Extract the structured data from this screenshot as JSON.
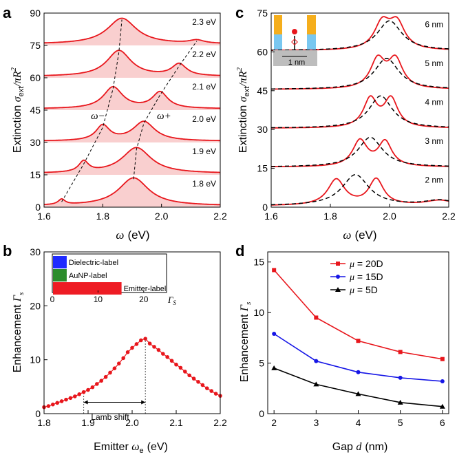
{
  "chart_data": [
    {
      "panel": "a",
      "type": "area",
      "xlabel_symbol": "ω",
      "xlabel_unit": "(eV)",
      "ylabel_prefix": "Extinction ",
      "ylabel_sigma": "σ",
      "ylabel_sub": "ext",
      "ylabel_rest": "/πR",
      "ylabel_sup": "2",
      "xlim": [
        1.6,
        2.2
      ],
      "ylim": [
        0,
        90
      ],
      "xticks": [
        "1.6",
        "1.8",
        "2.0",
        "2.2"
      ],
      "yticks": [
        "0",
        "15",
        "30",
        "45",
        "60",
        "75",
        "90"
      ],
      "annotations": [
        "ω−",
        "ω+"
      ],
      "series": [
        {
          "name": "1.8 eV",
          "offset": 0,
          "peaks": [
            {
              "x": 1.66,
              "h": 2.5,
              "w": 0.014
            },
            {
              "x": 1.905,
              "h": 13.0,
              "w": 0.062
            }
          ]
        },
        {
          "name": "1.9 eV",
          "offset": 15,
          "peaks": [
            {
              "x": 1.735,
              "h": 5.0,
              "w": 0.02
            },
            {
              "x": 1.915,
              "h": 12.0,
              "w": 0.06
            }
          ]
        },
        {
          "name": "2.0 eV",
          "offset": 30,
          "peaks": [
            {
              "x": 1.8,
              "h": 7.0,
              "w": 0.028
            },
            {
              "x": 1.94,
              "h": 9.0,
              "w": 0.045
            }
          ]
        },
        {
          "name": "2.1 eV",
          "offset": 45,
          "peaks": [
            {
              "x": 1.835,
              "h": 10.0,
              "w": 0.04
            },
            {
              "x": 1.995,
              "h": 7.5,
              "w": 0.032
            }
          ]
        },
        {
          "name": "2.2 eV",
          "offset": 60,
          "peaks": [
            {
              "x": 1.855,
              "h": 12.0,
              "w": 0.05
            },
            {
              "x": 2.06,
              "h": 5.5,
              "w": 0.03
            }
          ]
        },
        {
          "name": "2.3 eV",
          "offset": 75,
          "peaks": [
            {
              "x": 1.865,
              "h": 12.0,
              "w": 0.06
            },
            {
              "x": 2.12,
              "h": 1.5,
              "w": 0.03
            }
          ]
        }
      ],
      "dashed_lower": [
        [
          1.66,
          2.5
        ],
        [
          1.735,
          20
        ],
        [
          1.8,
          37
        ],
        [
          1.835,
          55
        ],
        [
          1.855,
          72
        ],
        [
          1.865,
          87
        ]
      ],
      "dashed_upper": [
        [
          1.905,
          13
        ],
        [
          1.915,
          27
        ],
        [
          1.94,
          39
        ],
        [
          1.995,
          52
        ],
        [
          2.06,
          65.5
        ],
        [
          2.12,
          77
        ]
      ]
    },
    {
      "panel": "b",
      "type": "line",
      "xlabel_prefix": "Emitter ",
      "xlabel_symbol": "ω",
      "xlabel_sub": "e",
      "xlabel_unit": "(eV)",
      "ylabel_prefix": "Enhancement ",
      "ylabel_symbol": "Γ",
      "ylabel_sub": "s",
      "xlim": [
        1.8,
        2.2
      ],
      "ylim": [
        0,
        30
      ],
      "xticks": [
        "1.8",
        "1.9",
        "2.0",
        "2.1",
        "2.2"
      ],
      "yticks": [
        "0",
        "10",
        "20",
        "30"
      ],
      "x": [
        1.8,
        1.81,
        1.82,
        1.83,
        1.84,
        1.85,
        1.86,
        1.87,
        1.88,
        1.89,
        1.9,
        1.91,
        1.92,
        1.93,
        1.94,
        1.95,
        1.96,
        1.97,
        1.98,
        1.99,
        2.0,
        2.01,
        2.02,
        2.03,
        2.04,
        2.05,
        2.06,
        2.07,
        2.08,
        2.09,
        2.1,
        2.11,
        2.12,
        2.13,
        2.14,
        2.15,
        2.16,
        2.17,
        2.18,
        2.19,
        2.2
      ],
      "y": [
        1.2,
        1.4,
        1.7,
        2.0,
        2.3,
        2.6,
        2.9,
        3.2,
        3.6,
        4.0,
        4.4,
        4.9,
        5.5,
        6.1,
        6.8,
        7.6,
        8.4,
        9.3,
        10.3,
        11.4,
        12.2,
        12.9,
        13.6,
        13.9,
        13.0,
        12.4,
        11.8,
        11.1,
        10.5,
        9.8,
        9.1,
        8.5,
        7.8,
        7.1,
        6.5,
        5.9,
        5.3,
        4.7,
        4.2,
        3.7,
        3.3
      ],
      "annotation": "Lamb shift",
      "lamb_range": [
        1.89,
        2.03
      ],
      "inset": {
        "type": "bar",
        "xticks": [
          "0",
          "10",
          "20"
        ],
        "xlabel": "Γ",
        "xlabel_sub": "S",
        "categories": [
          "Dielectric-label",
          "AuNP-label",
          "Emitter-label"
        ],
        "values": [
          3,
          3,
          15
        ],
        "colors": [
          "#1f2bff",
          "#2c8c2c",
          "#ee1c24"
        ]
      }
    },
    {
      "panel": "c",
      "type": "line",
      "xlabel_symbol": "ω",
      "xlabel_unit": "(eV)",
      "ylabel_prefix": "Extinction ",
      "ylabel_sigma": "σ",
      "ylabel_sub": "ext",
      "ylabel_rest": "/πR",
      "ylabel_sup": "2",
      "xlim": [
        1.6,
        2.2
      ],
      "ylim": [
        0,
        75
      ],
      "xticks": [
        "1.6",
        "1.8",
        "2.0",
        "2.2"
      ],
      "yticks": [
        "0",
        "15",
        "30",
        "45",
        "60",
        "75"
      ],
      "inset_label": "1 nm",
      "series": [
        {
          "name": "2 nm",
          "offset": 0,
          "solid": [
            {
              "x": 1.82,
              "h": 10.0,
              "w": 0.035
            },
            {
              "x": 1.955,
              "h": 10.0,
              "w": 0.03
            },
            {
              "x": 2.17,
              "h": 2.0,
              "w": 0.06
            }
          ],
          "dashed": [
            {
              "x": 1.885,
              "h": 12.0,
              "w": 0.055
            },
            {
              "x": 2.17,
              "h": 2.0,
              "w": 0.06
            }
          ]
        },
        {
          "name": "3 nm",
          "offset": 15,
          "solid": [
            {
              "x": 1.9,
              "h": 10.0,
              "w": 0.03
            },
            {
              "x": 1.985,
              "h": 9.5,
              "w": 0.028
            }
          ],
          "dashed": [
            {
              "x": 1.935,
              "h": 11.5,
              "w": 0.05
            }
          ]
        },
        {
          "name": "4 nm",
          "offset": 30,
          "solid": [
            {
              "x": 1.935,
              "h": 11.0,
              "w": 0.028
            },
            {
              "x": 2.005,
              "h": 11.0,
              "w": 0.028
            }
          ],
          "dashed": [
            {
              "x": 1.97,
              "h": 12.5,
              "w": 0.048
            }
          ]
        },
        {
          "name": "5 nm",
          "offset": 45,
          "solid": [
            {
              "x": 1.96,
              "h": 11.0,
              "w": 0.03
            },
            {
              "x": 2.02,
              "h": 11.0,
              "w": 0.03
            }
          ],
          "dashed": [
            {
              "x": 1.99,
              "h": 12.0,
              "w": 0.05
            }
          ]
        },
        {
          "name": "6 nm",
          "offset": 60,
          "solid": [
            {
              "x": 1.975,
              "h": 10.0,
              "w": 0.032
            },
            {
              "x": 2.025,
              "h": 10.0,
              "w": 0.032
            }
          ],
          "dashed": [
            {
              "x": 2.0,
              "h": 11.5,
              "w": 0.05
            }
          ]
        }
      ]
    },
    {
      "panel": "d",
      "type": "line",
      "xlabel_prefix": "Gap ",
      "xlabel_symbol": "d",
      "xlabel_unit": "(nm)",
      "ylabel_prefix": "Enhancement ",
      "ylabel_symbol": "Γ",
      "ylabel_sub": "s",
      "xlim": [
        2,
        6
      ],
      "ylim": [
        0,
        16
      ],
      "xticks": [
        "2",
        "3",
        "4",
        "5",
        "6"
      ],
      "yticks": [
        "0",
        "5",
        "10",
        "15"
      ],
      "categories": [
        2,
        3,
        4,
        5,
        6
      ],
      "series": [
        {
          "name": "μ = 20D",
          "symbol": "μ",
          "label": " = 20D",
          "color": "#e8161c",
          "marker": "square",
          "values": [
            14.2,
            9.5,
            7.2,
            6.1,
            5.4
          ]
        },
        {
          "name": "μ = 15D",
          "symbol": "μ",
          "label": " = 15D",
          "color": "#1616e6",
          "marker": "circle",
          "values": [
            7.9,
            5.2,
            4.1,
            3.55,
            3.2
          ]
        },
        {
          "name": "μ = 5D",
          "symbol": "μ",
          "label": " = 5D",
          "color": "#000000",
          "marker": "triangle",
          "values": [
            4.5,
            2.9,
            1.95,
            1.1,
            0.7
          ]
        }
      ]
    }
  ],
  "panel_labels": [
    "a",
    "b",
    "c",
    "d"
  ],
  "colors": {
    "red": "#e8161c",
    "fill": "#f9cfcf",
    "blue": "#1616e6",
    "black": "#000000",
    "gold": "#f5ae1c",
    "cyan": "#79c7f0",
    "gray": "#bdbdbd"
  }
}
